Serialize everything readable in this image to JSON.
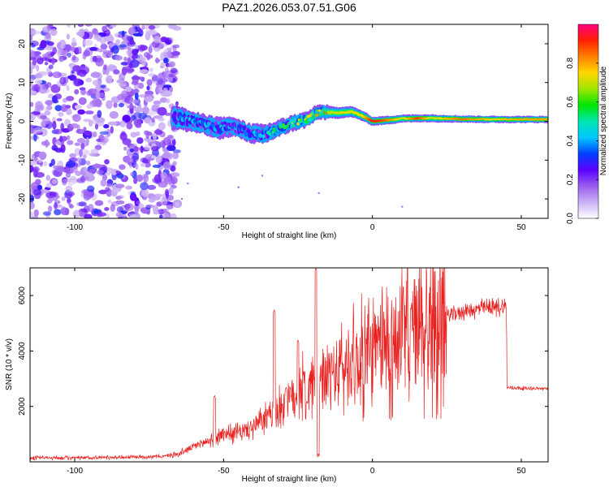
{
  "figure": {
    "title": "PAZ1.2026.053.07.51.G06"
  },
  "chart_data": [
    {
      "type": "heatmap",
      "title": "PAZ1.2026.053.07.51.G06",
      "xlabel": "Height of straight line (km)",
      "ylabel": "Frequency (Hz)",
      "xlim": [
        -115,
        59
      ],
      "ylim": [
        -25,
        25
      ],
      "xticks": [
        -100,
        -50,
        0,
        50
      ],
      "yticks": [
        -20,
        -10,
        0,
        10,
        20
      ],
      "xtick_labels": [
        "-100",
        "-50",
        "0",
        "50"
      ],
      "ytick_labels": [
        "-20",
        "-10",
        "0",
        "10",
        "20"
      ],
      "noise_region": {
        "x_from": -115,
        "x_to": -67,
        "amplitude_range": [
          0.05,
          0.2
        ]
      },
      "ridge": {
        "x": [
          -67,
          -62,
          -57,
          -52,
          -47,
          -42,
          -37,
          -32,
          -27,
          -22,
          -18,
          -12,
          -7,
          -3,
          0,
          5,
          10,
          15,
          20,
          30,
          40,
          50,
          59
        ],
        "freq": [
          1.2,
          0.2,
          -0.8,
          -1.8,
          -1.3,
          -2.8,
          -3.5,
          -2.0,
          -0.5,
          0.5,
          2.5,
          2.2,
          2.5,
          1.3,
          0.0,
          0.3,
          0.7,
          0.8,
          0.8,
          0.6,
          0.5,
          0.5,
          0.5
        ],
        "amplitude": [
          0.3,
          0.4,
          0.38,
          0.35,
          0.33,
          0.35,
          0.37,
          0.45,
          0.55,
          0.6,
          0.65,
          0.7,
          0.72,
          0.75,
          0.95,
          0.85,
          0.7,
          0.9,
          0.7,
          0.85,
          0.75,
          0.8,
          0.8
        ],
        "width": [
          3.0,
          2.6,
          2.4,
          2.6,
          2.2,
          2.2,
          2.4,
          2.0,
          1.8,
          1.8,
          1.7,
          1.5,
          1.4,
          1.3,
          1.1,
          1.1,
          1.0,
          1.0,
          1.0,
          0.9,
          0.9,
          0.9,
          0.9
        ]
      },
      "colorbar": {
        "label": "Normalized spectral amplitude",
        "range": [
          0,
          1
        ],
        "ticks": [
          0.0,
          0.2,
          0.4,
          0.6,
          0.8
        ],
        "tick_labels": [
          "0.0",
          "0.2",
          "0.4",
          "0.6",
          "0.8"
        ],
        "colors": [
          "#ffffff",
          "#c9b0f5",
          "#9a5cf0",
          "#5b00ff",
          "#0040ff",
          "#00c8ff",
          "#00e6b0",
          "#00e600",
          "#a0e600",
          "#ffd700",
          "#ff8000",
          "#ff2000",
          "#ff0080"
        ]
      }
    },
    {
      "type": "line",
      "xlabel": "Height of straight line (km)",
      "ylabel": "SNR (10 * v/v)",
      "xlim": [
        -115,
        59
      ],
      "ylim": [
        0,
        7000
      ],
      "xticks": [
        -100,
        -50,
        0,
        50
      ],
      "yticks": [
        2000,
        4000,
        6000
      ],
      "xtick_labels": [
        "-100",
        "-50",
        "0",
        "50"
      ],
      "ytick_labels": [
        "2000",
        "4000",
        "6000"
      ],
      "series": [
        {
          "name": "SNR",
          "color": "#e8201e",
          "x": [
            -115,
            -100,
            -90,
            -80,
            -70,
            -65,
            -62,
            -58,
            -55,
            -52,
            -50,
            -47,
            -44,
            -41,
            -38,
            -35,
            -32,
            -30,
            -28,
            -26,
            -24,
            -22,
            -20,
            -18,
            -16,
            -14,
            -12,
            -10,
            -8,
            -6,
            -4,
            -2,
            0,
            2,
            4,
            6,
            8,
            10,
            12,
            15,
            18,
            20,
            22,
            25,
            28,
            30,
            33,
            36,
            40,
            43,
            45,
            45.2,
            47,
            50,
            55,
            59
          ],
          "values": [
            150,
            140,
            160,
            170,
            200,
            280,
            450,
            650,
            750,
            900,
            1050,
            1000,
            1100,
            1200,
            1400,
            1600,
            1850,
            2050,
            2250,
            2450,
            2600,
            2800,
            2750,
            2600,
            2850,
            3100,
            3300,
            3400,
            3500,
            3600,
            3700,
            3800,
            3900,
            4050,
            4150,
            4300,
            4400,
            4500,
            4600,
            4750,
            4900,
            5050,
            5150,
            5250,
            5350,
            5420,
            5480,
            5520,
            5560,
            5580,
            5600,
            2680,
            2670,
            2660,
            2650,
            2640
          ],
          "spikes": [
            {
              "x": -53,
              "value": 2400
            },
            {
              "x": -33,
              "value": 5500
            },
            {
              "x": -29,
              "value": 2700
            },
            {
              "x": -25,
              "value": 4400
            },
            {
              "x": -22,
              "value": 2200
            },
            {
              "x": -19,
              "value": 7000
            },
            {
              "x": -18.2,
              "value": 300
            }
          ]
        }
      ]
    }
  ]
}
